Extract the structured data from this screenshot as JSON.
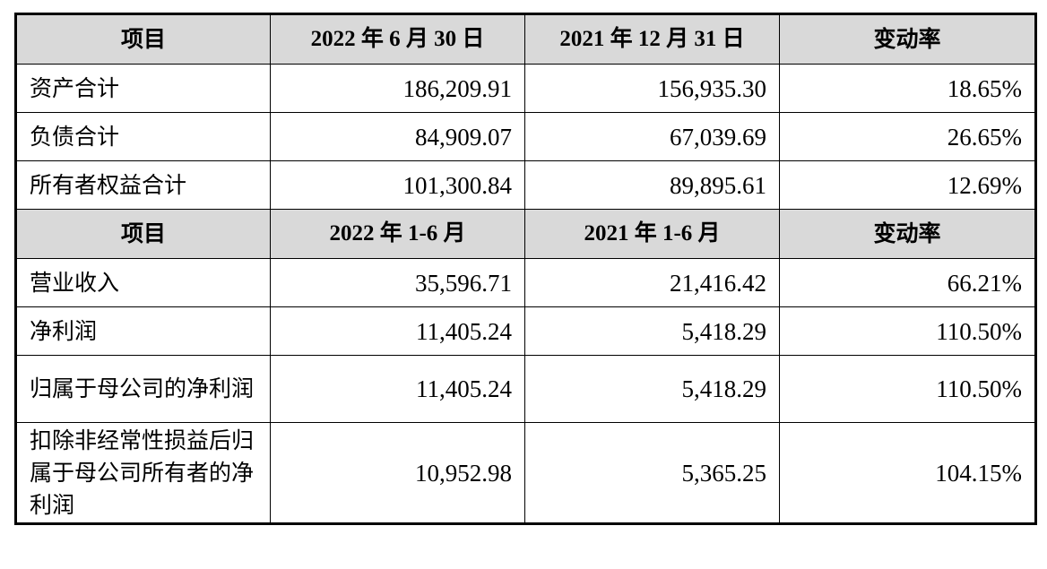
{
  "section1": {
    "headers": [
      "项目",
      "2022 年 6 月 30 日",
      "2021 年 12 月 31 日",
      "变动率"
    ],
    "rows": [
      {
        "label": "资产合计",
        "v1": "186,209.91",
        "v2": "156,935.30",
        "rate": "18.65%"
      },
      {
        "label": "负债合计",
        "v1": "84,909.07",
        "v2": "67,039.69",
        "rate": "26.65%"
      },
      {
        "label": "所有者权益合计",
        "v1": "101,300.84",
        "v2": "89,895.61",
        "rate": "12.69%"
      }
    ]
  },
  "section2": {
    "headers": [
      "项目",
      "2022 年 1-6 月",
      "2021 年 1-6 月",
      "变动率"
    ],
    "rows": [
      {
        "label": "营业收入",
        "v1": "35,596.71",
        "v2": "21,416.42",
        "rate": "66.21%"
      },
      {
        "label": "净利润",
        "v1": "11,405.24",
        "v2": "5,418.29",
        "rate": "110.50%"
      },
      {
        "label": "归属于母公司的净利润",
        "v1": "11,405.24",
        "v2": "5,418.29",
        "rate": "110.50%"
      },
      {
        "label": "扣除非经常性损益后归属于母公司所有者的净利润",
        "v1": "10,952.98",
        "v2": "5,365.25",
        "rate": "104.15%"
      }
    ]
  }
}
